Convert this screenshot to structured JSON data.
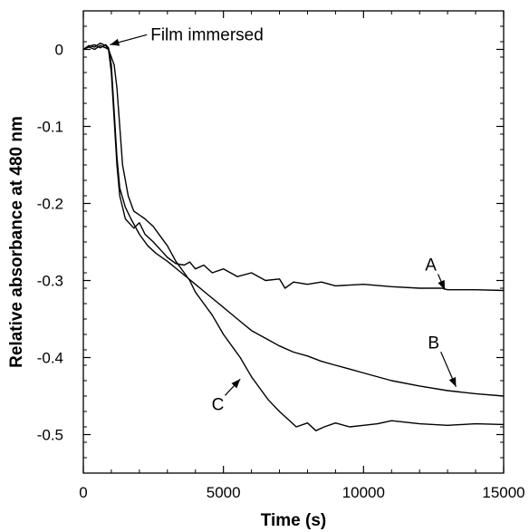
{
  "chart_data": {
    "type": "line",
    "xlabel": "Time (s)",
    "ylabel": "Relative absorbance at 480 nm",
    "xlim": [
      0,
      15000
    ],
    "ylim": [
      -0.55,
      0.05
    ],
    "xticks": [
      0,
      5000,
      10000,
      15000
    ],
    "xtick_labels": [
      "0",
      "5000",
      "10000",
      "15000"
    ],
    "yticks": [
      0,
      -0.1,
      -0.2,
      -0.3,
      -0.4,
      -0.5
    ],
    "ytick_labels": [
      "0",
      "-0.1",
      "-0.2",
      "-0.3",
      "-0.4",
      "-0.5"
    ],
    "grid": false,
    "series": [
      {
        "name": "A",
        "color": "#000000",
        "x": [
          0,
          200,
          400,
          600,
          800,
          900,
          1000,
          1100,
          1200,
          1300,
          1500,
          1800,
          2000,
          2200,
          2500,
          2800,
          3000,
          3300,
          3600,
          3800,
          4000,
          4300,
          4600,
          5000,
          5500,
          6000,
          6500,
          7000,
          7200,
          7500,
          8000,
          8500,
          9000,
          10000,
          11000,
          12000,
          12800,
          13000,
          14000,
          15000
        ],
        "y": [
          0.0,
          0.005,
          0.003,
          0.008,
          0.005,
          0.0,
          -0.03,
          -0.09,
          -0.15,
          -0.19,
          -0.22,
          -0.232,
          -0.225,
          -0.24,
          -0.25,
          -0.262,
          -0.27,
          -0.278,
          -0.28,
          -0.276,
          -0.285,
          -0.28,
          -0.29,
          -0.285,
          -0.295,
          -0.29,
          -0.3,
          -0.298,
          -0.31,
          -0.302,
          -0.305,
          -0.302,
          -0.307,
          -0.305,
          -0.308,
          -0.31,
          -0.31,
          -0.312,
          -0.312,
          -0.313
        ]
      },
      {
        "name": "B",
        "color": "#000000",
        "x": [
          0,
          200,
          400,
          600,
          800,
          900,
          1000,
          1100,
          1200,
          1300,
          1500,
          1700,
          2000,
          2300,
          2600,
          3000,
          3500,
          4000,
          4500,
          5000,
          5500,
          6000,
          6500,
          7000,
          7500,
          8000,
          8500,
          9000,
          9500,
          10000,
          11000,
          12000,
          13000,
          14000,
          15000
        ],
        "y": [
          0.0,
          0.004,
          0.006,
          0.002,
          0.006,
          0.002,
          -0.02,
          -0.08,
          -0.14,
          -0.18,
          -0.205,
          -0.22,
          -0.24,
          -0.255,
          -0.265,
          -0.275,
          -0.29,
          -0.305,
          -0.32,
          -0.335,
          -0.35,
          -0.365,
          -0.375,
          -0.385,
          -0.393,
          -0.398,
          -0.405,
          -0.41,
          -0.415,
          -0.42,
          -0.43,
          -0.437,
          -0.443,
          -0.447,
          -0.45
        ]
      },
      {
        "name": "C",
        "color": "#000000",
        "x": [
          0,
          200,
          400,
          600,
          800,
          900,
          1000,
          1100,
          1200,
          1300,
          1400,
          1600,
          1800,
          2000,
          2200,
          2500,
          2800,
          3000,
          3300,
          3600,
          3800,
          4000,
          4300,
          4600,
          5000,
          5300,
          5600,
          6000,
          6300,
          6600,
          7000,
          7300,
          7600,
          8000,
          8300,
          8600,
          9000,
          9500,
          10000,
          10500,
          11000,
          12000,
          13000,
          14000,
          15000
        ],
        "y": [
          0.0,
          0.003,
          0.0,
          0.005,
          0.002,
          0.0,
          -0.01,
          -0.02,
          -0.05,
          -0.1,
          -0.15,
          -0.19,
          -0.21,
          -0.215,
          -0.22,
          -0.23,
          -0.245,
          -0.255,
          -0.275,
          -0.29,
          -0.3,
          -0.315,
          -0.33,
          -0.345,
          -0.37,
          -0.385,
          -0.4,
          -0.425,
          -0.44,
          -0.455,
          -0.47,
          -0.48,
          -0.49,
          -0.485,
          -0.495,
          -0.49,
          -0.485,
          -0.49,
          -0.488,
          -0.486,
          -0.482,
          -0.486,
          -0.488,
          -0.486,
          -0.487
        ]
      }
    ],
    "annotations": [
      {
        "text": "Film immersed",
        "x": 2400,
        "y": 0.012,
        "arrow_to": [
          950,
          0.006
        ]
      },
      {
        "text": "A",
        "x": 12400,
        "y": -0.287,
        "arrow_to": [
          12900,
          -0.312
        ]
      },
      {
        "text": "B",
        "x": 12500,
        "y": -0.388,
        "arrow_to": [
          13300,
          -0.438
        ]
      },
      {
        "text": "C",
        "x": 4800,
        "y": -0.468,
        "arrow_to": [
          5600,
          -0.428
        ]
      }
    ]
  }
}
